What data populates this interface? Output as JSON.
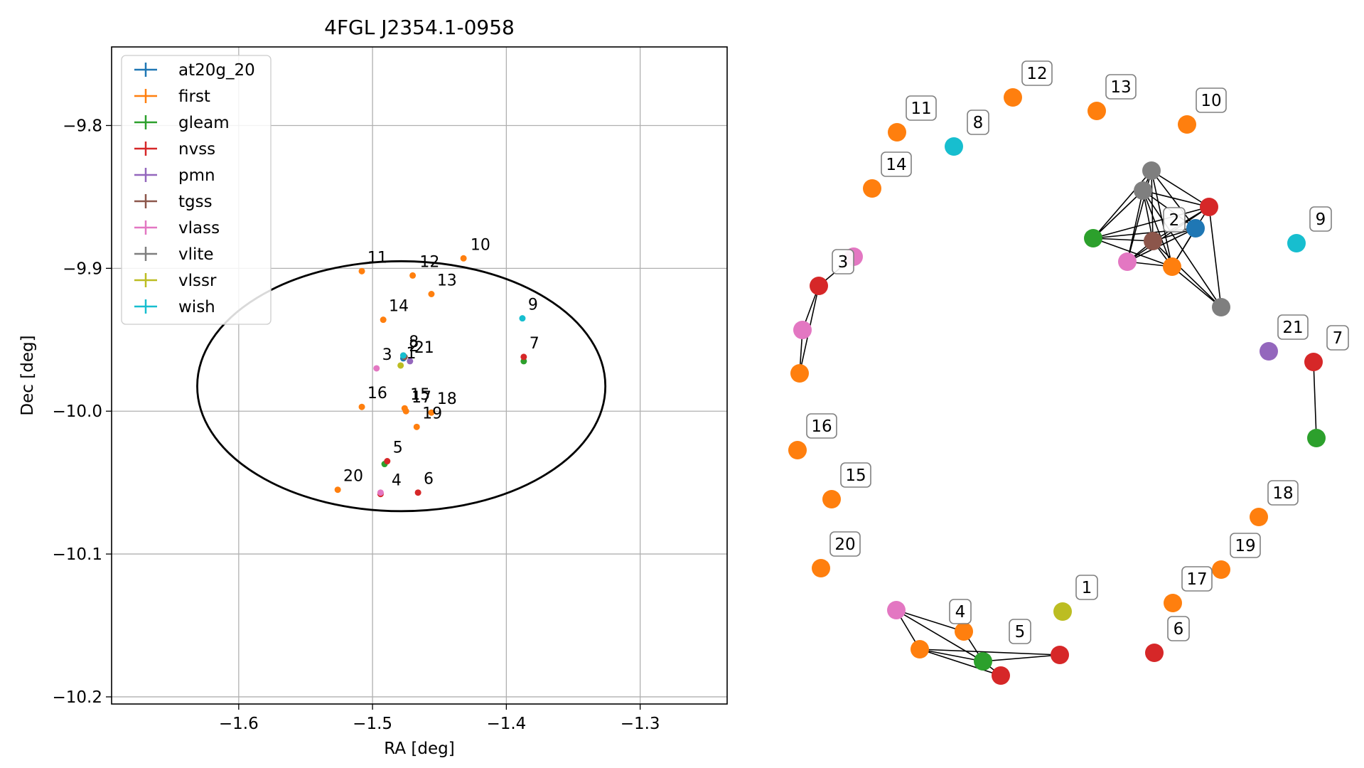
{
  "chart_data": [
    {
      "type": "scatter",
      "title": "4FGL J2354.1-0958",
      "xlabel": "RA [deg]",
      "ylabel": "Dec [deg]",
      "xlim": [
        -1.695,
        -1.235
      ],
      "ylim": [
        -10.205,
        -9.745
      ],
      "xticks": [
        -1.6,
        -1.5,
        -1.4,
        -1.3
      ],
      "xtick_labels": [
        "−1.6",
        "−1.5",
        "−1.4",
        "−1.3"
      ],
      "yticks": [
        -9.8,
        -9.9,
        -10.0,
        -10.1,
        -10.2
      ],
      "ytick_labels": [
        "−9.8",
        "−9.9",
        "−10.0",
        "−10.1",
        "−10.2"
      ],
      "grid": true,
      "legend_position": "top-left",
      "ellipse": {
        "center": [
          -1.4785,
          -9.9825
        ],
        "semi_axis_ra": 0.1525,
        "semi_axis_dec": 0.0875
      },
      "series": [
        {
          "name": "at20g_20",
          "color": "#1f77b4",
          "points": [
            [
              -1.477,
              -9.963
            ]
          ]
        },
        {
          "name": "first",
          "color": "#ff7f0e",
          "points": [
            [
              -1.432,
              -9.893
            ],
            [
              -1.508,
              -9.902
            ],
            [
              -1.47,
              -9.905
            ],
            [
              -1.456,
              -9.918
            ],
            [
              -1.492,
              -9.936
            ],
            [
              -1.476,
              -9.998
            ],
            [
              -1.475,
              -10.0
            ],
            [
              -1.456,
              -10.001
            ],
            [
              -1.467,
              -10.011
            ],
            [
              -1.508,
              -9.997
            ],
            [
              -1.526,
              -10.055
            ]
          ]
        },
        {
          "name": "gleam",
          "color": "#2ca02c",
          "points": [
            [
              -1.491,
              -10.037
            ],
            [
              -1.387,
              -9.965
            ]
          ]
        },
        {
          "name": "nvss",
          "color": "#d62728",
          "points": [
            [
              -1.489,
              -10.035
            ],
            [
              -1.494,
              -10.058
            ],
            [
              -1.466,
              -10.057
            ],
            [
              -1.387,
              -9.962
            ]
          ]
        },
        {
          "name": "pmn",
          "color": "#9467bd",
          "points": [
            [
              -1.472,
              -9.965
            ]
          ]
        },
        {
          "name": "tgss",
          "color": "#8c564b",
          "points": [
            [
              -1.476,
              -9.962
            ]
          ]
        },
        {
          "name": "vlass",
          "color": "#e377c2",
          "points": [
            [
              -1.497,
              -9.97
            ],
            [
              -1.494,
              -10.057
            ]
          ]
        },
        {
          "name": "vlite",
          "color": "#7f7f7f",
          "points": [
            [
              -1.477,
              -9.961
            ]
          ]
        },
        {
          "name": "vlssr",
          "color": "#bcbd22",
          "points": [
            [
              -1.479,
              -9.968
            ]
          ]
        },
        {
          "name": "wish",
          "color": "#17becf",
          "points": [
            [
              -1.388,
              -9.935
            ],
            [
              -1.477,
              -9.961
            ]
          ]
        }
      ],
      "annotations": [
        {
          "text": "1",
          "x": -1.478,
          "y": -9.966
        },
        {
          "text": "2",
          "x": -1.476,
          "y": -9.961
        },
        {
          "text": "8",
          "x": -1.476,
          "y": -9.958
        },
        {
          "text": "21",
          "x": -1.472,
          "y": -9.962
        },
        {
          "text": "3",
          "x": -1.496,
          "y": -9.967
        },
        {
          "text": "4",
          "x": -1.489,
          "y": -10.055
        },
        {
          "text": "5",
          "x": -1.488,
          "y": -10.032
        },
        {
          "text": "6",
          "x": -1.465,
          "y": -10.054
        },
        {
          "text": "7",
          "x": -1.386,
          "y": -9.959
        },
        {
          "text": "9",
          "x": -1.387,
          "y": -9.932
        },
        {
          "text": "10",
          "x": -1.43,
          "y": -9.89
        },
        {
          "text": "11",
          "x": -1.507,
          "y": -9.899
        },
        {
          "text": "12",
          "x": -1.468,
          "y": -9.902
        },
        {
          "text": "13",
          "x": -1.455,
          "y": -9.915
        },
        {
          "text": "14",
          "x": -1.491,
          "y": -9.933
        },
        {
          "text": "15",
          "x": -1.475,
          "y": -9.995
        },
        {
          "text": "16",
          "x": -1.507,
          "y": -9.994
        },
        {
          "text": "17",
          "x": -1.474,
          "y": -9.997
        },
        {
          "text": "18",
          "x": -1.455,
          "y": -9.998
        },
        {
          "text": "19",
          "x": -1.466,
          "y": -10.008
        },
        {
          "text": "20",
          "x": -1.525,
          "y": -10.052
        }
      ]
    },
    {
      "type": "network",
      "nodes": [
        {
          "id": "n1",
          "color": "#bcbd22"
        },
        {
          "id": "n2a",
          "color": "#7f7f7f"
        },
        {
          "id": "n2b",
          "color": "#7f7f7f"
        },
        {
          "id": "n2c",
          "color": "#d62728"
        },
        {
          "id": "n2d",
          "color": "#1f77b4"
        },
        {
          "id": "n2e",
          "color": "#2ca02c"
        },
        {
          "id": "n2f",
          "color": "#8c564b"
        },
        {
          "id": "n2g",
          "color": "#e377c2"
        },
        {
          "id": "n2h",
          "color": "#ff7f0e"
        },
        {
          "id": "n2i",
          "color": "#7f7f7f"
        },
        {
          "id": "n3a",
          "color": "#e377c2"
        },
        {
          "id": "n3b",
          "color": "#d62728"
        },
        {
          "id": "n3c",
          "color": "#e377c2"
        },
        {
          "id": "n3d",
          "color": "#ff7f0e"
        },
        {
          "id": "n4a",
          "color": "#e377c2"
        },
        {
          "id": "n4b",
          "color": "#ff7f0e"
        },
        {
          "id": "n4c",
          "color": "#ff7f0e"
        },
        {
          "id": "n4d",
          "color": "#2ca02c"
        },
        {
          "id": "n4e",
          "color": "#d62728"
        },
        {
          "id": "n5",
          "color": "#d62728"
        },
        {
          "id": "n6",
          "color": "#d62728"
        },
        {
          "id": "n7a",
          "color": "#d62728"
        },
        {
          "id": "n7b",
          "color": "#2ca02c"
        },
        {
          "id": "n8",
          "color": "#17becf"
        },
        {
          "id": "n9",
          "color": "#17becf"
        },
        {
          "id": "n10",
          "color": "#ff7f0e"
        },
        {
          "id": "n11",
          "color": "#ff7f0e"
        },
        {
          "id": "n12",
          "color": "#ff7f0e"
        },
        {
          "id": "n13",
          "color": "#ff7f0e"
        },
        {
          "id": "n14",
          "color": "#ff7f0e"
        },
        {
          "id": "n15",
          "color": "#ff7f0e"
        },
        {
          "id": "n16",
          "color": "#ff7f0e"
        },
        {
          "id": "n17",
          "color": "#ff7f0e"
        },
        {
          "id": "n18",
          "color": "#ff7f0e"
        },
        {
          "id": "n19",
          "color": "#ff7f0e"
        },
        {
          "id": "n20",
          "color": "#ff7f0e"
        },
        {
          "id": "n21",
          "color": "#9467bd"
        }
      ],
      "edges": [
        [
          "n2a",
          "n2b"
        ],
        [
          "n2a",
          "n2c"
        ],
        [
          "n2a",
          "n2d"
        ],
        [
          "n2a",
          "n2e"
        ],
        [
          "n2a",
          "n2f"
        ],
        [
          "n2a",
          "n2g"
        ],
        [
          "n2a",
          "n2h"
        ],
        [
          "n2b",
          "n2c"
        ],
        [
          "n2b",
          "n2d"
        ],
        [
          "n2b",
          "n2e"
        ],
        [
          "n2b",
          "n2f"
        ],
        [
          "n2b",
          "n2g"
        ],
        [
          "n2b",
          "n2h"
        ],
        [
          "n2b",
          "n2i"
        ],
        [
          "n2c",
          "n2e"
        ],
        [
          "n2c",
          "n2f"
        ],
        [
          "n2c",
          "n2g"
        ],
        [
          "n2c",
          "n2h"
        ],
        [
          "n2c",
          "n2i"
        ],
        [
          "n2d",
          "n2e"
        ],
        [
          "n2d",
          "n2f"
        ],
        [
          "n2d",
          "n2g"
        ],
        [
          "n2d",
          "n2h"
        ],
        [
          "n2e",
          "n2f"
        ],
        [
          "n2e",
          "n2h"
        ],
        [
          "n2f",
          "n2g"
        ],
        [
          "n2f",
          "n2h"
        ],
        [
          "n2g",
          "n2h"
        ],
        [
          "n2h",
          "n2i"
        ],
        [
          "n2f",
          "n2i"
        ],
        [
          "n3a",
          "n3b"
        ],
        [
          "n3b",
          "n3c"
        ],
        [
          "n3b",
          "n3d"
        ],
        [
          "n3c",
          "n3d"
        ],
        [
          "n4a",
          "n4b"
        ],
        [
          "n4a",
          "n4c"
        ],
        [
          "n4a",
          "n4d"
        ],
        [
          "n4b",
          "n4d"
        ],
        [
          "n4c",
          "n4d"
        ],
        [
          "n4c",
          "n4e"
        ],
        [
          "n4d",
          "n4e"
        ],
        [
          "n4c",
          "n5"
        ],
        [
          "n4d",
          "n5"
        ],
        [
          "n7a",
          "n7b"
        ]
      ],
      "labels": [
        {
          "text": "1",
          "node": "n1"
        },
        {
          "text": "2",
          "node": "n2f"
        },
        {
          "text": "3",
          "node": "n3b"
        },
        {
          "text": "4",
          "node": "n4b"
        },
        {
          "text": "5",
          "node": "n4d"
        },
        {
          "text": "6",
          "node": "n6"
        },
        {
          "text": "7",
          "node": "n7a"
        },
        {
          "text": "8",
          "node": "n8"
        },
        {
          "text": "9",
          "node": "n9"
        },
        {
          "text": "10",
          "node": "n10"
        },
        {
          "text": "11",
          "node": "n11"
        },
        {
          "text": "12",
          "node": "n12"
        },
        {
          "text": "13",
          "node": "n13"
        },
        {
          "text": "14",
          "node": "n14"
        },
        {
          "text": "15",
          "node": "n15"
        },
        {
          "text": "16",
          "node": "n16"
        },
        {
          "text": "17",
          "node": "n17"
        },
        {
          "text": "18",
          "node": "n18"
        },
        {
          "text": "19",
          "node": "n19"
        },
        {
          "text": "20",
          "node": "n20"
        },
        {
          "text": "21",
          "node": "n21"
        }
      ]
    }
  ]
}
